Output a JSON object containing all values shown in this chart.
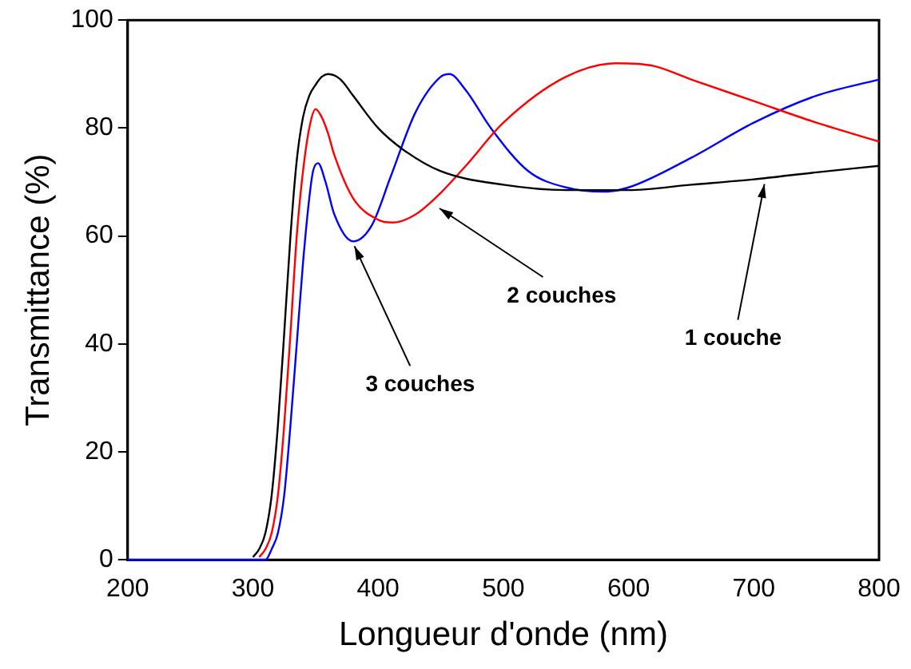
{
  "chart_data": {
    "type": "line",
    "xlabel": "Longueur d'onde (nm)",
    "ylabel": "Transmittance (%)",
    "xlim": [
      200,
      800
    ],
    "xticks": [
      200,
      300,
      400,
      500,
      600,
      700,
      800
    ],
    "ylim": [
      0,
      100
    ],
    "yticks": [
      0,
      20,
      40,
      60,
      80,
      100
    ],
    "grid": false,
    "legend": false,
    "marker": "none",
    "line_style": "solid",
    "series": [
      {
        "color": "#000000",
        "x": [
          300,
          305,
          310,
          315,
          320,
          325,
          330,
          335,
          340,
          345,
          350,
          355,
          360,
          370,
          380,
          400,
          420,
          450,
          500,
          550,
          600,
          650,
          700,
          750,
          800
        ],
        "values": [
          0.5,
          2,
          5,
          12,
          25,
          42,
          60,
          74,
          82,
          86,
          88,
          89.5,
          90,
          89,
          86,
          80,
          76,
          72,
          69.5,
          68.5,
          68.5,
          69.5,
          70.5,
          71.8,
          73
        ]
      },
      {
        "color": "#ff0000",
        "x": [
          305,
          310,
          315,
          320,
          325,
          330,
          335,
          340,
          345,
          350,
          355,
          360,
          365,
          380,
          400,
          412,
          430,
          450,
          470,
          500,
          550,
          590,
          620,
          650,
          700,
          750,
          800
        ],
        "values": [
          0.5,
          2,
          5,
          12,
          25,
          42,
          60,
          72,
          80,
          83.5,
          82,
          79,
          75,
          67,
          63,
          62.5,
          64,
          68,
          73,
          81,
          89.5,
          92,
          91.5,
          89,
          85,
          81,
          77.5
        ]
      },
      {
        "color": "#0000ff",
        "x": [
          200,
          250,
          300,
          310,
          315,
          320,
          325,
          330,
          335,
          340,
          345,
          348,
          352,
          358,
          365,
          380,
          395,
          410,
          430,
          450,
          457,
          470,
          490,
          520,
          550,
          580,
          600,
          650,
          700,
          750,
          800
        ],
        "values": [
          0,
          0,
          0,
          0,
          2,
          5,
          12,
          25,
          40,
          55,
          67,
          72,
          73.5,
          70,
          64,
          59,
          62,
          71,
          83,
          89.5,
          90,
          87,
          80,
          72,
          69,
          68.2,
          69,
          74.5,
          81,
          86,
          89
        ]
      }
    ],
    "annotations": [
      {
        "text": "3 couches",
        "x": 380,
        "y": 59
      },
      {
        "text": "2 couches",
        "x": 447,
        "y": 66
      },
      {
        "text": "1 couche",
        "x": 709,
        "y": 70.5
      }
    ]
  }
}
